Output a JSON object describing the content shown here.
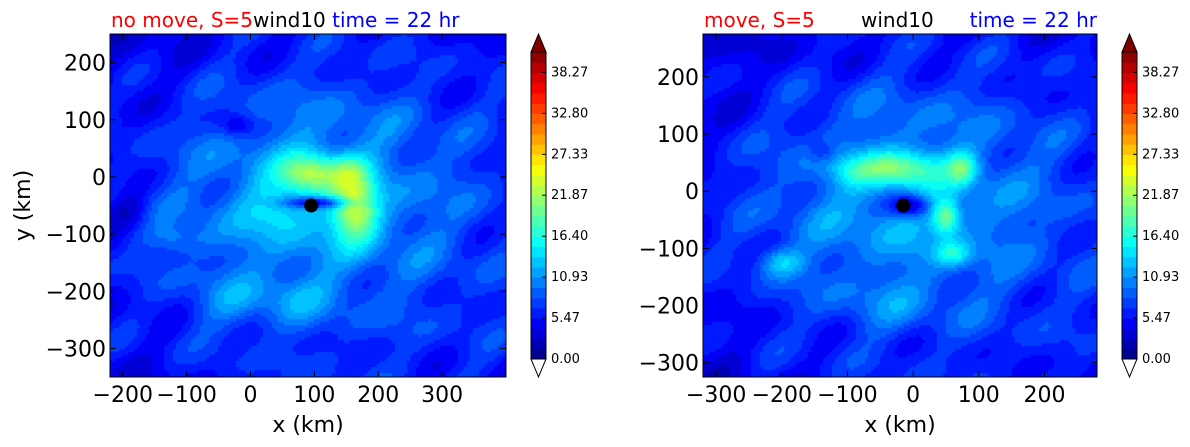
{
  "colors": {
    "title_left": "#ff0000",
    "title_mid": "#000000",
    "title_right": "#0000ff",
    "eye_marker": "#000000"
  },
  "chart_data": [
    {
      "type": "heatmap",
      "title_parts": {
        "left": "no move, S=5",
        "mid": "wind10",
        "right": "time = 22 hr"
      },
      "xlabel": "x (km)",
      "ylabel": "y (km)",
      "xlim": [
        -220,
        400
      ],
      "ylim": [
        -350,
        250
      ],
      "xticks": [
        -200,
        -100,
        0,
        100,
        200,
        300
      ],
      "xtick_labels": [
        "−200",
        "−100",
        "0",
        "100",
        "200",
        "300"
      ],
      "yticks": [
        -300,
        -200,
        -100,
        0,
        100,
        200
      ],
      "ytick_labels": [
        "−300",
        "−200",
        "−100",
        "0",
        "100",
        "200"
      ],
      "center": [
        95,
        -50
      ],
      "field": {
        "background": 3.5,
        "bg_gradient": [
          0.6,
          -0.4
        ],
        "blobs": [
          {
            "x": 95,
            "y": -50,
            "rx": 380,
            "ry": 330,
            "amp": 5.0
          },
          {
            "x": 80,
            "y": -20,
            "rx": 200,
            "ry": 170,
            "amp": 3.5
          },
          {
            "x": 95,
            "y": 5,
            "rx": 45,
            "ry": 35,
            "amp": 11.0
          },
          {
            "x": 165,
            "y": -55,
            "rx": 35,
            "ry": 55,
            "amp": 13.0
          },
          {
            "x": 155,
            "y": 10,
            "rx": 30,
            "ry": 30,
            "amp": 5.0
          },
          {
            "x": 40,
            "y": -60,
            "rx": 45,
            "ry": 40,
            "amp": 3.0
          },
          {
            "x": -120,
            "y": -110,
            "rx": 45,
            "ry": 25,
            "amp": 3.0
          },
          {
            "x": -30,
            "y": -220,
            "rx": 70,
            "ry": 50,
            "amp": 2.5
          },
          {
            "x": 70,
            "y": -215,
            "rx": 60,
            "ry": 45,
            "amp": 2.5
          },
          {
            "x": 110,
            "y": -45,
            "rx": 55,
            "ry": 10,
            "amp": -9.0
          },
          {
            "x": -20,
            "y": 90,
            "rx": 25,
            "ry": 20,
            "amp": -4.0
          },
          {
            "x": -190,
            "y": -60,
            "rx": 30,
            "ry": 30,
            "amp": -3.0
          }
        ]
      },
      "colorbar": {
        "vmin": 0.0,
        "vmax": 41.0,
        "levels": 30,
        "tick_values": [
          0.0,
          5.47,
          10.93,
          16.4,
          21.87,
          27.33,
          32.8,
          38.27
        ],
        "tick_labels": [
          "0.00",
          "5.47",
          "10.93",
          "16.40",
          "21.87",
          "27.33",
          "32.80",
          "38.27"
        ],
        "extend": "both"
      }
    },
    {
      "type": "heatmap",
      "title_parts": {
        "left": "move, S=5",
        "mid": "wind10",
        "right": "time = 22 hr"
      },
      "xlabel": "x (km)",
      "ylabel": "",
      "xlim": [
        -320,
        280
      ],
      "ylim": [
        -325,
        275
      ],
      "xticks": [
        -300,
        -200,
        -100,
        0,
        100,
        200
      ],
      "xtick_labels": [
        "−300",
        "−200",
        "−100",
        "0",
        "100",
        "200"
      ],
      "yticks": [
        -300,
        -200,
        -100,
        0,
        100,
        200
      ],
      "ytick_labels": [
        "−300",
        "−200",
        "−100",
        "0",
        "100",
        "200"
      ],
      "center": [
        -15,
        -25
      ],
      "field": {
        "background": 3.5,
        "bg_gradient": [
          0.6,
          -0.4
        ],
        "blobs": [
          {
            "x": -15,
            "y": -25,
            "rx": 380,
            "ry": 330,
            "amp": 5.0
          },
          {
            "x": -15,
            "y": 0,
            "rx": 200,
            "ry": 170,
            "amp": 3.5
          },
          {
            "x": -20,
            "y": 40,
            "rx": 60,
            "ry": 30,
            "amp": 9.0
          },
          {
            "x": 50,
            "y": -45,
            "rx": 20,
            "ry": 30,
            "amp": 10.0
          },
          {
            "x": 75,
            "y": 40,
            "rx": 22,
            "ry": 28,
            "amp": 8.0
          },
          {
            "x": 60,
            "y": -110,
            "rx": 25,
            "ry": 20,
            "amp": 6.0
          },
          {
            "x": -200,
            "y": -125,
            "rx": 35,
            "ry": 25,
            "amp": 6.0
          },
          {
            "x": -90,
            "y": 35,
            "rx": 40,
            "ry": 25,
            "amp": 3.5
          },
          {
            "x": -40,
            "y": -200,
            "rx": 80,
            "ry": 45,
            "amp": 2.0
          },
          {
            "x": -5,
            "y": -25,
            "rx": 30,
            "ry": 20,
            "amp": -9.0
          },
          {
            "x": -140,
            "y": 70,
            "rx": 20,
            "ry": 18,
            "amp": -3.0
          }
        ]
      },
      "colorbar": {
        "vmin": 0.0,
        "vmax": 41.0,
        "levels": 30,
        "tick_values": [
          0.0,
          5.47,
          10.93,
          16.4,
          21.87,
          27.33,
          32.8,
          38.27
        ],
        "tick_labels": [
          "0.00",
          "5.47",
          "10.93",
          "16.40",
          "21.87",
          "27.33",
          "32.80",
          "38.27"
        ],
        "extend": "both"
      }
    }
  ]
}
